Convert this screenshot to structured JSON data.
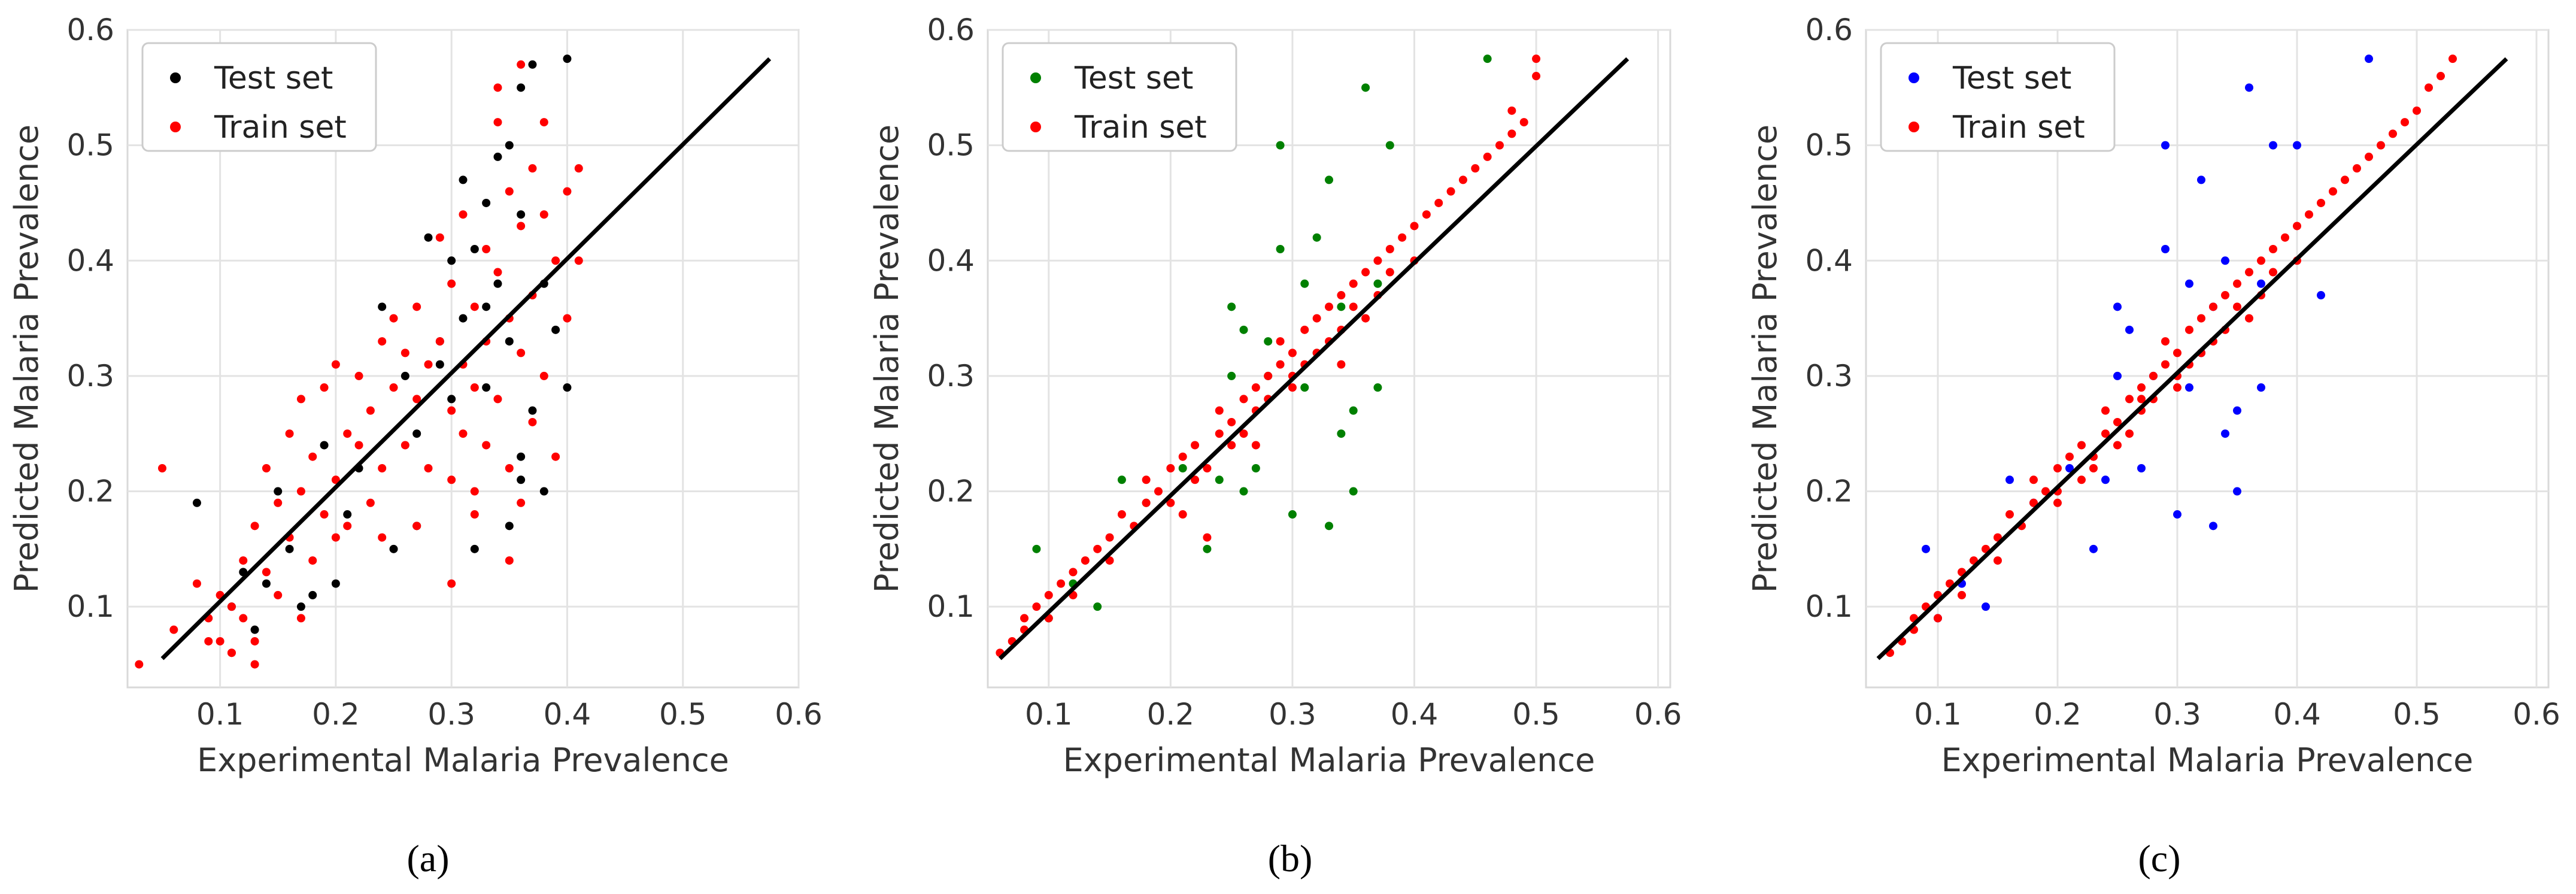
{
  "chart_data": [
    {
      "type": "scatter",
      "caption": "(a)",
      "xlabel": "Experimental Malaria Prevalence",
      "ylabel": "Predicted Malaria Prevalence",
      "xlim": [
        0.02,
        0.6
      ],
      "ylim": [
        0.03,
        0.6
      ],
      "xticks": [
        0.1,
        0.2,
        0.3,
        0.4,
        0.5,
        0.6
      ],
      "yticks": [
        0.1,
        0.2,
        0.3,
        0.4,
        0.5,
        0.6
      ],
      "grid": true,
      "legend_position": "top-left",
      "reference_line": {
        "x": [
          0.05,
          0.575
        ],
        "y": [
          0.055,
          0.575
        ],
        "color": "#000000"
      },
      "series": [
        {
          "name": "Test set",
          "color": "#000000",
          "x": [
            0.08,
            0.11,
            0.12,
            0.13,
            0.15,
            0.16,
            0.18,
            0.19,
            0.2,
            0.22,
            0.24,
            0.25,
            0.26,
            0.27,
            0.28,
            0.29,
            0.3,
            0.3,
            0.31,
            0.31,
            0.32,
            0.32,
            0.33,
            0.33,
            0.34,
            0.34,
            0.35,
            0.35,
            0.35,
            0.36,
            0.36,
            0.36,
            0.37,
            0.37,
            0.38,
            0.38,
            0.39,
            0.4,
            0.4,
            0.14,
            0.17,
            0.21,
            0.27,
            0.29,
            0.33,
            0.36
          ],
          "y": [
            0.19,
            0.1,
            0.13,
            0.08,
            0.2,
            0.15,
            0.11,
            0.24,
            0.12,
            0.22,
            0.36,
            0.15,
            0.3,
            0.17,
            0.42,
            0.31,
            0.4,
            0.28,
            0.47,
            0.35,
            0.15,
            0.41,
            0.36,
            0.29,
            0.49,
            0.38,
            0.5,
            0.33,
            0.17,
            0.55,
            0.44,
            0.21,
            0.57,
            0.27,
            0.2,
            0.38,
            0.34,
            0.29,
            0.575,
            0.12,
            0.1,
            0.18,
            0.25,
            0.33,
            0.45,
            0.23
          ]
        },
        {
          "name": "Train set",
          "color": "#ff0000",
          "x": [
            0.03,
            0.05,
            0.06,
            0.08,
            0.09,
            0.1,
            0.1,
            0.11,
            0.11,
            0.12,
            0.12,
            0.13,
            0.13,
            0.14,
            0.14,
            0.15,
            0.15,
            0.16,
            0.16,
            0.17,
            0.17,
            0.18,
            0.18,
            0.19,
            0.19,
            0.2,
            0.2,
            0.21,
            0.21,
            0.22,
            0.22,
            0.23,
            0.23,
            0.24,
            0.24,
            0.25,
            0.25,
            0.26,
            0.26,
            0.27,
            0.27,
            0.28,
            0.28,
            0.29,
            0.29,
            0.3,
            0.3,
            0.3,
            0.31,
            0.31,
            0.31,
            0.32,
            0.32,
            0.32,
            0.33,
            0.33,
            0.33,
            0.34,
            0.34,
            0.34,
            0.35,
            0.35,
            0.35,
            0.36,
            0.36,
            0.36,
            0.37,
            0.37,
            0.37,
            0.38,
            0.38,
            0.39,
            0.39,
            0.4,
            0.4,
            0.41,
            0.41,
            0.36,
            0.34,
            0.3,
            0.27,
            0.24,
            0.2,
            0.17,
            0.13,
            0.11,
            0.09,
            0.32,
            0.35,
            0.38
          ],
          "y": [
            0.05,
            0.22,
            0.08,
            0.12,
            0.09,
            0.11,
            0.07,
            0.1,
            0.06,
            0.14,
            0.09,
            0.17,
            0.07,
            0.13,
            0.22,
            0.19,
            0.11,
            0.25,
            0.16,
            0.28,
            0.2,
            0.14,
            0.23,
            0.29,
            0.18,
            0.31,
            0.21,
            0.25,
            0.17,
            0.3,
            0.24,
            0.27,
            0.19,
            0.33,
            0.22,
            0.29,
            0.35,
            0.32,
            0.24,
            0.36,
            0.28,
            0.31,
            0.22,
            0.42,
            0.33,
            0.38,
            0.27,
            0.21,
            0.44,
            0.31,
            0.25,
            0.36,
            0.29,
            0.18,
            0.41,
            0.33,
            0.24,
            0.52,
            0.39,
            0.28,
            0.46,
            0.35,
            0.22,
            0.43,
            0.32,
            0.19,
            0.48,
            0.37,
            0.26,
            0.44,
            0.3,
            0.4,
            0.23,
            0.46,
            0.35,
            0.48,
            0.4,
            0.57,
            0.55,
            0.12,
            0.17,
            0.16,
            0.16,
            0.09,
            0.05,
            0.06,
            0.07,
            0.2,
            0.14,
            0.52
          ]
        }
      ]
    },
    {
      "type": "scatter",
      "caption": "(b)",
      "xlabel": "Experimental Malaria Prevalence",
      "ylabel": "Predicted Malaria Prevalence",
      "xlim": [
        0.05,
        0.61
      ],
      "ylim": [
        0.03,
        0.6
      ],
      "xticks": [
        0.1,
        0.2,
        0.3,
        0.4,
        0.5,
        0.6
      ],
      "yticks": [
        0.1,
        0.2,
        0.3,
        0.4,
        0.5,
        0.6
      ],
      "grid": true,
      "legend_position": "top-left",
      "reference_line": {
        "x": [
          0.06,
          0.575
        ],
        "y": [
          0.055,
          0.575
        ],
        "color": "#000000"
      },
      "series": [
        {
          "name": "Test set",
          "color": "#008000",
          "x": [
            0.09,
            0.1,
            0.12,
            0.14,
            0.16,
            0.18,
            0.21,
            0.23,
            0.24,
            0.25,
            0.26,
            0.27,
            0.28,
            0.29,
            0.29,
            0.3,
            0.31,
            0.31,
            0.32,
            0.32,
            0.33,
            0.33,
            0.34,
            0.34,
            0.35,
            0.35,
            0.36,
            0.37,
            0.37,
            0.38,
            0.46,
            0.26,
            0.28,
            0.25
          ],
          "y": [
            0.15,
            0.09,
            0.12,
            0.1,
            0.21,
            0.19,
            0.22,
            0.15,
            0.21,
            0.36,
            0.34,
            0.22,
            0.3,
            0.41,
            0.5,
            0.18,
            0.29,
            0.38,
            0.42,
            0.32,
            0.17,
            0.47,
            0.25,
            0.36,
            0.2,
            0.27,
            0.55,
            0.29,
            0.38,
            0.5,
            0.575,
            0.2,
            0.33,
            0.3
          ]
        },
        {
          "name": "Train set",
          "color": "#ff0000",
          "x": [
            0.06,
            0.07,
            0.08,
            0.08,
            0.09,
            0.1,
            0.1,
            0.11,
            0.12,
            0.12,
            0.13,
            0.14,
            0.15,
            0.15,
            0.16,
            0.17,
            0.18,
            0.18,
            0.19,
            0.2,
            0.2,
            0.21,
            0.22,
            0.22,
            0.23,
            0.24,
            0.24,
            0.25,
            0.25,
            0.26,
            0.26,
            0.27,
            0.27,
            0.28,
            0.28,
            0.29,
            0.29,
            0.3,
            0.3,
            0.31,
            0.31,
            0.32,
            0.32,
            0.33,
            0.33,
            0.34,
            0.34,
            0.35,
            0.35,
            0.36,
            0.36,
            0.37,
            0.37,
            0.38,
            0.38,
            0.39,
            0.4,
            0.4,
            0.41,
            0.42,
            0.43,
            0.44,
            0.45,
            0.46,
            0.47,
            0.48,
            0.48,
            0.49,
            0.5,
            0.5,
            0.21,
            0.23,
            0.27,
            0.3,
            0.34
          ],
          "y": [
            0.06,
            0.07,
            0.08,
            0.09,
            0.1,
            0.11,
            0.09,
            0.12,
            0.13,
            0.11,
            0.14,
            0.15,
            0.16,
            0.14,
            0.18,
            0.17,
            0.19,
            0.21,
            0.2,
            0.22,
            0.19,
            0.23,
            0.21,
            0.24,
            0.22,
            0.25,
            0.27,
            0.26,
            0.24,
            0.28,
            0.25,
            0.29,
            0.27,
            0.3,
            0.28,
            0.31,
            0.33,
            0.32,
            0.3,
            0.34,
            0.31,
            0.35,
            0.32,
            0.36,
            0.33,
            0.37,
            0.34,
            0.38,
            0.36,
            0.39,
            0.35,
            0.4,
            0.37,
            0.41,
            0.39,
            0.42,
            0.43,
            0.4,
            0.44,
            0.45,
            0.46,
            0.47,
            0.48,
            0.49,
            0.5,
            0.51,
            0.53,
            0.52,
            0.56,
            0.575,
            0.18,
            0.16,
            0.24,
            0.29,
            0.31
          ]
        }
      ]
    },
    {
      "type": "scatter",
      "caption": "(c)",
      "xlabel": "Experimental Malaria Prevalence",
      "ylabel": "Predicted Malaria Prevalence",
      "xlim": [
        0.04,
        0.61
      ],
      "ylim": [
        0.03,
        0.6
      ],
      "xticks": [
        0.1,
        0.2,
        0.3,
        0.4,
        0.5,
        0.6
      ],
      "yticks": [
        0.1,
        0.2,
        0.3,
        0.4,
        0.5,
        0.6
      ],
      "grid": true,
      "legend_position": "top-left",
      "reference_line": {
        "x": [
          0.05,
          0.575
        ],
        "y": [
          0.055,
          0.575
        ],
        "color": "#000000"
      },
      "series": [
        {
          "name": "Test set",
          "color": "#0000ff",
          "x": [
            0.09,
            0.1,
            0.12,
            0.14,
            0.16,
            0.18,
            0.21,
            0.23,
            0.24,
            0.25,
            0.26,
            0.27,
            0.28,
            0.29,
            0.29,
            0.3,
            0.31,
            0.31,
            0.32,
            0.32,
            0.33,
            0.33,
            0.34,
            0.34,
            0.35,
            0.35,
            0.36,
            0.37,
            0.37,
            0.38,
            0.46,
            0.42,
            0.4,
            0.25
          ],
          "y": [
            0.15,
            0.09,
            0.12,
            0.1,
            0.21,
            0.19,
            0.22,
            0.15,
            0.21,
            0.36,
            0.34,
            0.22,
            0.3,
            0.41,
            0.5,
            0.18,
            0.29,
            0.38,
            0.47,
            0.32,
            0.17,
            0.36,
            0.25,
            0.4,
            0.2,
            0.27,
            0.55,
            0.29,
            0.38,
            0.5,
            0.575,
            0.37,
            0.5,
            0.3
          ]
        },
        {
          "name": "Train set",
          "color": "#ff0000",
          "x": [
            0.06,
            0.07,
            0.08,
            0.08,
            0.09,
            0.1,
            0.1,
            0.11,
            0.12,
            0.12,
            0.13,
            0.14,
            0.15,
            0.15,
            0.16,
            0.17,
            0.18,
            0.18,
            0.19,
            0.2,
            0.2,
            0.21,
            0.22,
            0.22,
            0.23,
            0.24,
            0.24,
            0.25,
            0.25,
            0.26,
            0.26,
            0.27,
            0.27,
            0.28,
            0.28,
            0.29,
            0.29,
            0.3,
            0.3,
            0.31,
            0.31,
            0.32,
            0.32,
            0.33,
            0.33,
            0.34,
            0.34,
            0.35,
            0.35,
            0.36,
            0.36,
            0.37,
            0.37,
            0.38,
            0.38,
            0.39,
            0.4,
            0.4,
            0.41,
            0.42,
            0.43,
            0.44,
            0.45,
            0.46,
            0.47,
            0.48,
            0.49,
            0.5,
            0.51,
            0.52,
            0.53,
            0.2,
            0.23,
            0.27,
            0.3
          ],
          "y": [
            0.06,
            0.07,
            0.08,
            0.09,
            0.1,
            0.11,
            0.09,
            0.12,
            0.13,
            0.11,
            0.14,
            0.15,
            0.16,
            0.14,
            0.18,
            0.17,
            0.19,
            0.21,
            0.2,
            0.22,
            0.19,
            0.23,
            0.21,
            0.24,
            0.22,
            0.25,
            0.27,
            0.26,
            0.24,
            0.28,
            0.25,
            0.29,
            0.27,
            0.3,
            0.28,
            0.31,
            0.33,
            0.32,
            0.3,
            0.34,
            0.31,
            0.35,
            0.32,
            0.36,
            0.33,
            0.37,
            0.34,
            0.38,
            0.36,
            0.39,
            0.35,
            0.4,
            0.37,
            0.41,
            0.39,
            0.42,
            0.43,
            0.4,
            0.44,
            0.45,
            0.46,
            0.47,
            0.48,
            0.49,
            0.5,
            0.51,
            0.52,
            0.53,
            0.55,
            0.56,
            0.575,
            0.2,
            0.23,
            0.28,
            0.29
          ]
        }
      ]
    }
  ]
}
